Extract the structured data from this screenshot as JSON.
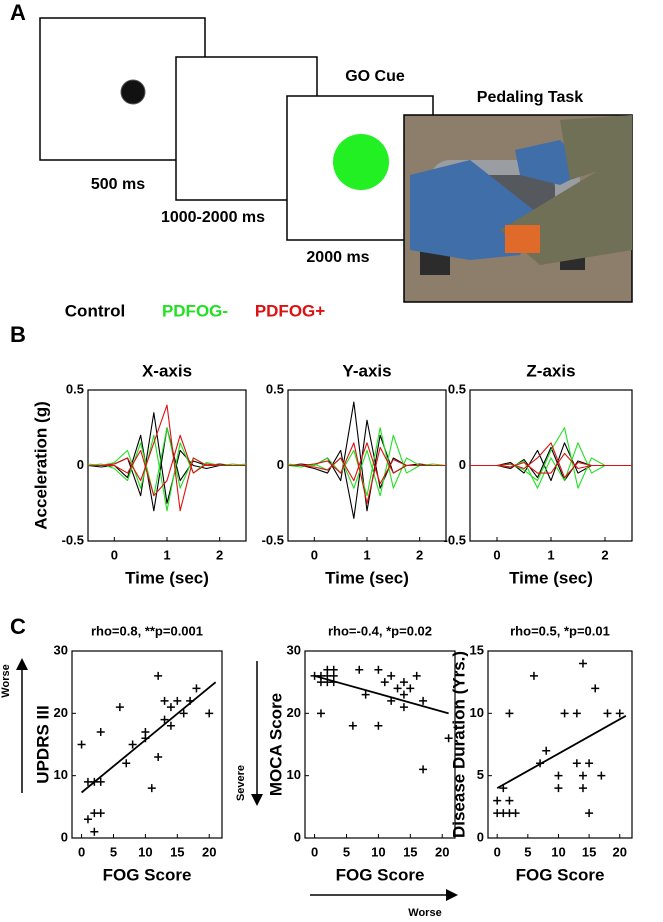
{
  "panel_labels": [
    "A",
    "B",
    "C"
  ],
  "task": {
    "durations": [
      "500 ms",
      "1000-2000 ms",
      "2000 ms"
    ],
    "go_cue": "GO Cue",
    "pedaling": "Pedaling Task"
  },
  "legend": [
    {
      "name": "Control",
      "color": "#000000"
    },
    {
      "name": "PDFOG-",
      "color": "#22e022"
    },
    {
      "name": "PDFOG+",
      "color": "#dd1111"
    }
  ],
  "chart_data": [
    {
      "type": "line",
      "title": "X-axis",
      "xlabel": "Time (sec)",
      "ylabel": "Acceleration (g)",
      "xlim": [
        -0.5,
        2.5
      ],
      "xticks": [
        0,
        1,
        2
      ],
      "ylim": [
        -0.5,
        0.5
      ],
      "yticks": [
        -0.5,
        0,
        0.5
      ],
      "x": [
        -0.5,
        -0.25,
        0,
        0.25,
        0.5,
        0.75,
        1,
        1.25,
        1.5,
        1.75,
        2,
        2.25,
        2.5
      ],
      "series": [
        {
          "color": "#000000",
          "values": [
            0,
            0,
            0.01,
            0.05,
            -0.2,
            0.35,
            -0.25,
            0.1,
            0,
            -0.02,
            0,
            0,
            0
          ]
        },
        {
          "color": "#000000",
          "values": [
            0,
            -0.01,
            0,
            -0.08,
            0.2,
            -0.3,
            0.25,
            -0.1,
            0.03,
            0,
            0.01,
            0,
            0
          ]
        },
        {
          "color": "#22e022",
          "values": [
            0.01,
            0,
            0.02,
            0.1,
            -0.15,
            0.2,
            -0.3,
            0.15,
            -0.05,
            0.02,
            0,
            0.01,
            0
          ]
        },
        {
          "color": "#22e022",
          "values": [
            0,
            0.01,
            -0.02,
            -0.1,
            0.15,
            -0.2,
            0.25,
            -0.15,
            0.05,
            0,
            0,
            0,
            0.01
          ]
        },
        {
          "color": "#dd1111",
          "values": [
            0,
            0,
            0.01,
            0.05,
            -0.1,
            0.15,
            0.4,
            -0.3,
            0.05,
            0,
            0,
            0,
            0
          ]
        },
        {
          "color": "#dd1111",
          "values": [
            0,
            0,
            0,
            -0.05,
            0.1,
            -0.2,
            -0.1,
            0.2,
            -0.05,
            0.01,
            0,
            0,
            0
          ]
        }
      ]
    },
    {
      "type": "line",
      "title": "Y-axis",
      "xlabel": "Time (sec)",
      "xlim": [
        -0.5,
        2.5
      ],
      "xticks": [
        0,
        1,
        2
      ],
      "ylim": [
        -0.5,
        0.5
      ],
      "yticks": [
        -0.5,
        0,
        0.5
      ],
      "x": [
        -0.5,
        -0.25,
        0,
        0.25,
        0.5,
        0.75,
        1,
        1.25,
        1.5,
        1.75,
        2,
        2.25,
        2.5
      ],
      "series": [
        {
          "color": "#000000",
          "values": [
            0,
            0.01,
            0,
            0.05,
            -0.1,
            0.42,
            -0.3,
            0.2,
            -0.05,
            0,
            0,
            0,
            0
          ]
        },
        {
          "color": "#000000",
          "values": [
            0,
            0,
            -0.02,
            -0.05,
            0.1,
            -0.35,
            0.3,
            -0.15,
            0.05,
            0,
            0.01,
            0,
            0
          ]
        },
        {
          "color": "#22e022",
          "values": [
            0.01,
            0,
            0,
            0.05,
            -0.05,
            0.1,
            -0.2,
            0.25,
            -0.15,
            0.05,
            0,
            0,
            0
          ]
        },
        {
          "color": "#22e022",
          "values": [
            0,
            -0.01,
            0.01,
            -0.03,
            0.05,
            -0.15,
            0.1,
            -0.2,
            0.2,
            -0.05,
            0,
            0.01,
            0
          ]
        },
        {
          "color": "#dd1111",
          "values": [
            0,
            0,
            0.01,
            0.03,
            -0.05,
            0.15,
            -0.25,
            0.12,
            -0.05,
            0,
            0,
            0,
            0
          ]
        },
        {
          "color": "#dd1111",
          "values": [
            0,
            0,
            -0.01,
            -0.03,
            0.05,
            -0.1,
            0.15,
            -0.12,
            0.04,
            0,
            0,
            0,
            0
          ]
        }
      ]
    },
    {
      "type": "line",
      "title": "Z-axis",
      "xlabel": "Time (sec)",
      "xlim": [
        -0.5,
        2.5
      ],
      "xticks": [
        0,
        1,
        2
      ],
      "ylim": [
        -0.5,
        0.5
      ],
      "yticks": [
        -0.5,
        0,
        0.5
      ],
      "x": [
        -0.5,
        -0.25,
        0,
        0.25,
        0.5,
        0.75,
        1,
        1.25,
        1.5,
        1.75,
        2,
        2.25,
        2.5
      ],
      "series": [
        {
          "color": "#000000",
          "values": [
            0,
            0,
            0,
            0.02,
            -0.05,
            0.1,
            -0.1,
            0.15,
            -0.05,
            0,
            0,
            0,
            0
          ]
        },
        {
          "color": "#000000",
          "values": [
            0,
            0,
            0,
            -0.02,
            0.04,
            -0.08,
            0.12,
            -0.1,
            0.03,
            0,
            0,
            0,
            0
          ]
        },
        {
          "color": "#22e022",
          "values": [
            0,
            0,
            0,
            0.01,
            -0.03,
            -0.1,
            0.1,
            0.25,
            -0.15,
            0.05,
            0,
            0,
            0
          ]
        },
        {
          "color": "#22e022",
          "values": [
            0,
            0,
            0,
            -0.01,
            0.03,
            -0.15,
            0.05,
            -0.1,
            0.15,
            -0.05,
            0,
            0,
            0
          ]
        },
        {
          "color": "#dd1111",
          "values": [
            0,
            0,
            0,
            0.01,
            -0.02,
            0.05,
            0.15,
            -0.08,
            0.02,
            0,
            0,
            0,
            0
          ]
        },
        {
          "color": "#dd1111",
          "values": [
            0,
            0,
            0,
            -0.01,
            0.02,
            -0.05,
            -0.05,
            0.08,
            -0.02,
            0,
            0,
            0,
            0
          ]
        }
      ]
    },
    {
      "type": "scatter",
      "annotation": "rho=0.8,  **p=0.001",
      "xlabel": "FOG Score",
      "ylabel": "UPDRS III",
      "y_arrow_label": "Worse",
      "xlim": [
        -1.5,
        22
      ],
      "xticks": [
        0,
        5,
        10,
        15,
        20
      ],
      "ylim": [
        0,
        30
      ],
      "yticks": [
        0,
        10,
        20,
        30
      ],
      "x": [
        0,
        1,
        1,
        2,
        2,
        2,
        3,
        3,
        3,
        6,
        7,
        8,
        10,
        10,
        11,
        12,
        12,
        13,
        13,
        14,
        14,
        15,
        16,
        17,
        18,
        20
      ],
      "values": [
        15,
        3,
        9,
        1,
        4,
        9,
        4,
        9,
        17,
        21,
        12,
        15,
        17,
        16,
        8,
        13,
        26,
        19,
        22,
        21,
        18,
        22,
        20,
        22,
        24,
        20
      ],
      "fit": {
        "x": [
          0,
          21
        ],
        "values": [
          7.3,
          25
        ]
      }
    },
    {
      "type": "scatter",
      "annotation": "rho=-0.4,  *p=0.02",
      "xlabel": "FOG Score",
      "ylabel": "MOCA Score",
      "y_arrow_label": "Severe",
      "x_arrow_label": "Worse",
      "xlim": [
        -1.5,
        22
      ],
      "xticks": [
        0,
        5,
        10,
        15,
        20
      ],
      "ylim": [
        0,
        30
      ],
      "yticks": [
        0,
        10,
        20,
        30
      ],
      "x": [
        0,
        1,
        1,
        1,
        2,
        2,
        2,
        3,
        3,
        3,
        6,
        7,
        8,
        10,
        10,
        11,
        12,
        12,
        13,
        14,
        14,
        14,
        15,
        16,
        17,
        17,
        21
      ],
      "values": [
        26,
        26,
        20,
        25,
        26,
        27,
        25,
        27,
        26,
        25,
        18,
        27,
        23,
        27,
        18,
        25,
        22,
        26,
        24,
        25,
        23,
        21,
        24,
        26,
        11,
        22,
        16
      ],
      "fit": {
        "x": [
          0,
          21
        ],
        "values": [
          26,
          20
        ]
      }
    },
    {
      "type": "scatter",
      "annotation": "rho=0.5,  *p=0.01",
      "xlabel": "FOG Score",
      "ylabel": "Disease Duration (Yrs.)",
      "xlim": [
        -1.5,
        22
      ],
      "xticks": [
        0,
        5,
        10,
        15,
        20
      ],
      "ylim": [
        0,
        15
      ],
      "yticks": [
        0,
        5,
        10,
        15
      ],
      "x": [
        0,
        0,
        1,
        1,
        2,
        2,
        2,
        3,
        6,
        7,
        8,
        10,
        10,
        11,
        13,
        13,
        14,
        14,
        14,
        15,
        15,
        16,
        17,
        18,
        20
      ],
      "values": [
        3,
        2,
        4,
        2,
        10,
        2,
        3,
        2,
        13,
        6,
        7,
        4,
        5,
        10,
        10,
        6,
        14,
        5,
        4,
        6,
        2,
        12,
        5,
        10,
        10
      ],
      "fit": {
        "x": [
          0,
          21
        ],
        "values": [
          4,
          9.8
        ]
      }
    }
  ]
}
